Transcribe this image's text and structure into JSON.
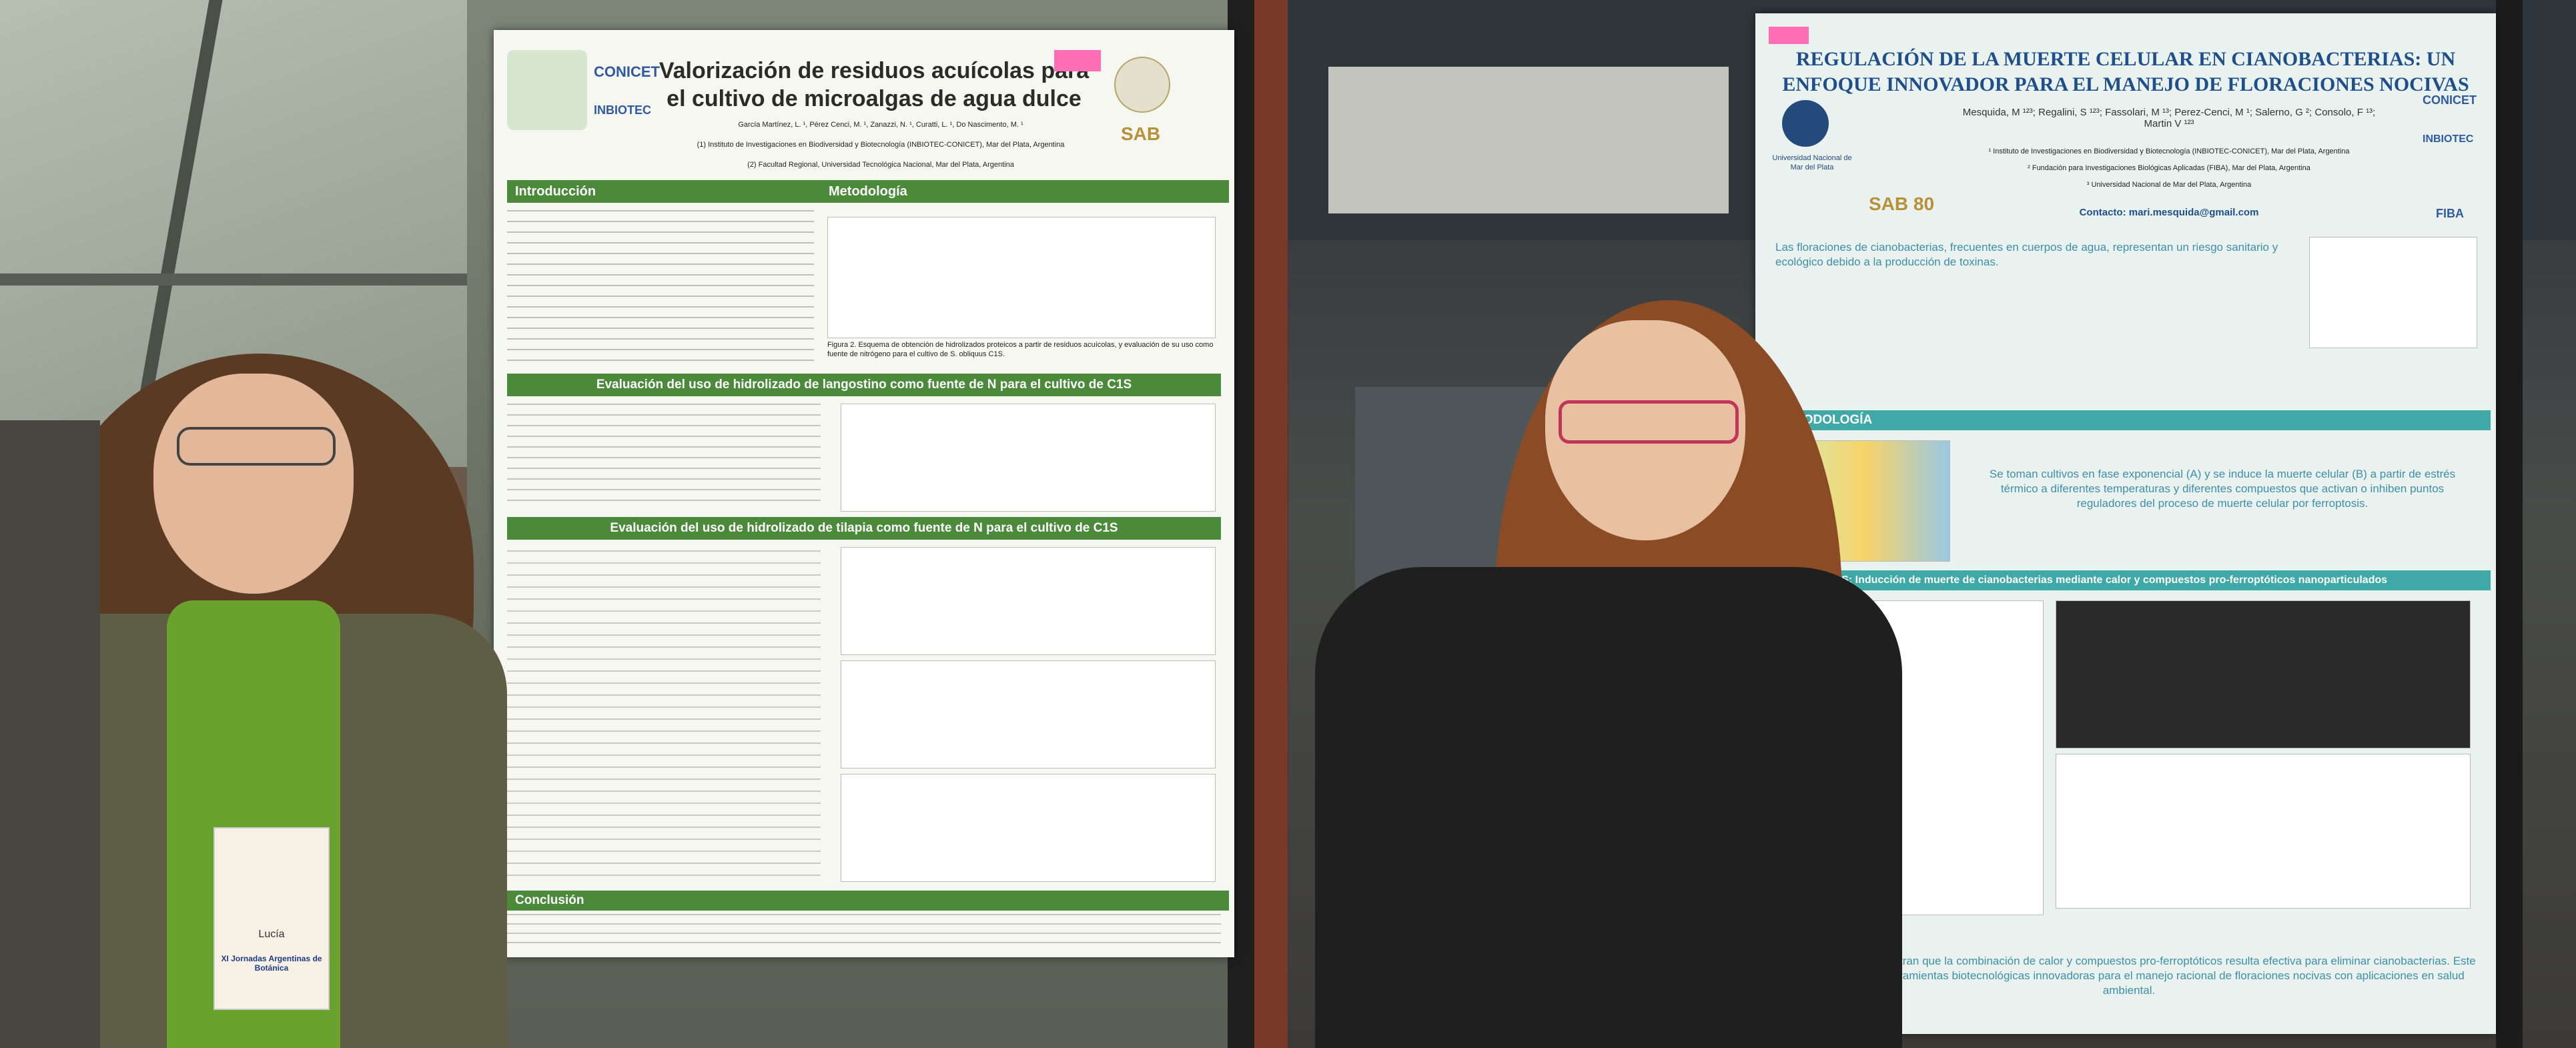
{
  "left_photo": {
    "poster": {
      "title": "Valorización de residuos acuícolas para el cultivo de microalgas de agua dulce",
      "logos": [
        "CONICET",
        "INBIOTEC",
        "SAB"
      ],
      "authors": "García Martínez, L. ¹, Pérez Cenci, M. ¹, Zanazzi, N. ¹, Curatti, L. ¹, Do Nascimento, M. ¹",
      "affiliation_1": "(1) Instituto de Investigaciones en Biodiversidad y Biotecnología (INBIOTEC-CONICET), Mar del Plata, Argentina",
      "affiliation_2": "(2) Facultad Regional, Universidad Tecnológica Nacional, Mar del Plata, Argentina",
      "sections": {
        "intro": "Introducción",
        "method": "Metodología",
        "eval1": "Evaluación del uso de hidrolizado de langostino como fuente de N para el cultivo de C1S",
        "eval2": "Evaluación del uso de hidrolizado de tilapia como fuente de N para el cultivo de C1S",
        "conclusion": "Conclusión"
      },
      "fig2": "Figura 2. Esquema de obtención de hidrolizados proteicos a partir de residuos acuícolas, y evaluación de su uso como fuente de nitrógeno para el cultivo de S. obliquus C1S."
    },
    "badge": {
      "name": "Lucía",
      "event": "XI Jornadas Argentinas de Botánica"
    }
  },
  "right_photo": {
    "poster": {
      "title": "REGULACIÓN DE LA MUERTE CELULAR EN CIANOBACTERIAS: UN ENFOQUE INNOVADOR PARA EL MANEJO DE FLORACIONES NOCIVAS",
      "logos": [
        "Universidad Nacional de Mar del Plata",
        "SAB 80",
        "CONICET",
        "INBIOTEC",
        "FIBA"
      ],
      "authors": "Mesquida, M ¹²³; Regalini, S ¹²³; Fassolari, M ¹³; Perez-Cenci, M ¹; Salerno, G ²; Consolo, F ¹³; Martin V ¹²³",
      "affiliation_1": "¹ Instituto de Investigaciones en Biodiversidad y Biotecnología (INBIOTEC-CONICET), Mar del Plata, Argentina",
      "affiliation_2": "² Fundación para Investigaciones Biológicas Aplicadas (FIBA), Mar del Plata, Argentina",
      "affiliation_3": "³ Universidad Nacional de Mar del Plata, Argentina",
      "contact": "Contacto: mari.mesquida@gmail.com",
      "sections": {
        "method": "METODOLOGÍA",
        "results": "RESULTADOS: Inducción de muerte de cianobacterias mediante calor y compuestos pro-ferroptóticos nanoparticulados"
      },
      "intro_text": "Las floraciones de cianobacterias, frecuentes en cuerpos de agua, representan un riesgo sanitario y ecológico debido a la producción de toxinas.",
      "method_text": "Se toman cultivos en fase exponencial (A) y se induce la muerte celular (B) a partir de estrés térmico a diferentes temperaturas y diferentes compuestos que activan o inhiben puntos reguladores del proceso de muerte celular por ferroptosis.",
      "conclusion_text": "Los resultados demuestran que la combinación de calor y compuestos pro-ferroptóticos resulta efectiva para eliminar cianobacterias. Este enfoque propone herramientas biotecnológicas innovadoras para el manejo racional de floraciones nocivas con aplicaciones en salud ambiental."
    }
  },
  "colors": {
    "green_header": "#4a8a3a",
    "teal_header": "#3fa9a8",
    "pink_tag": "#ff6fb5",
    "poster_bg": "#f7f7f2"
  }
}
